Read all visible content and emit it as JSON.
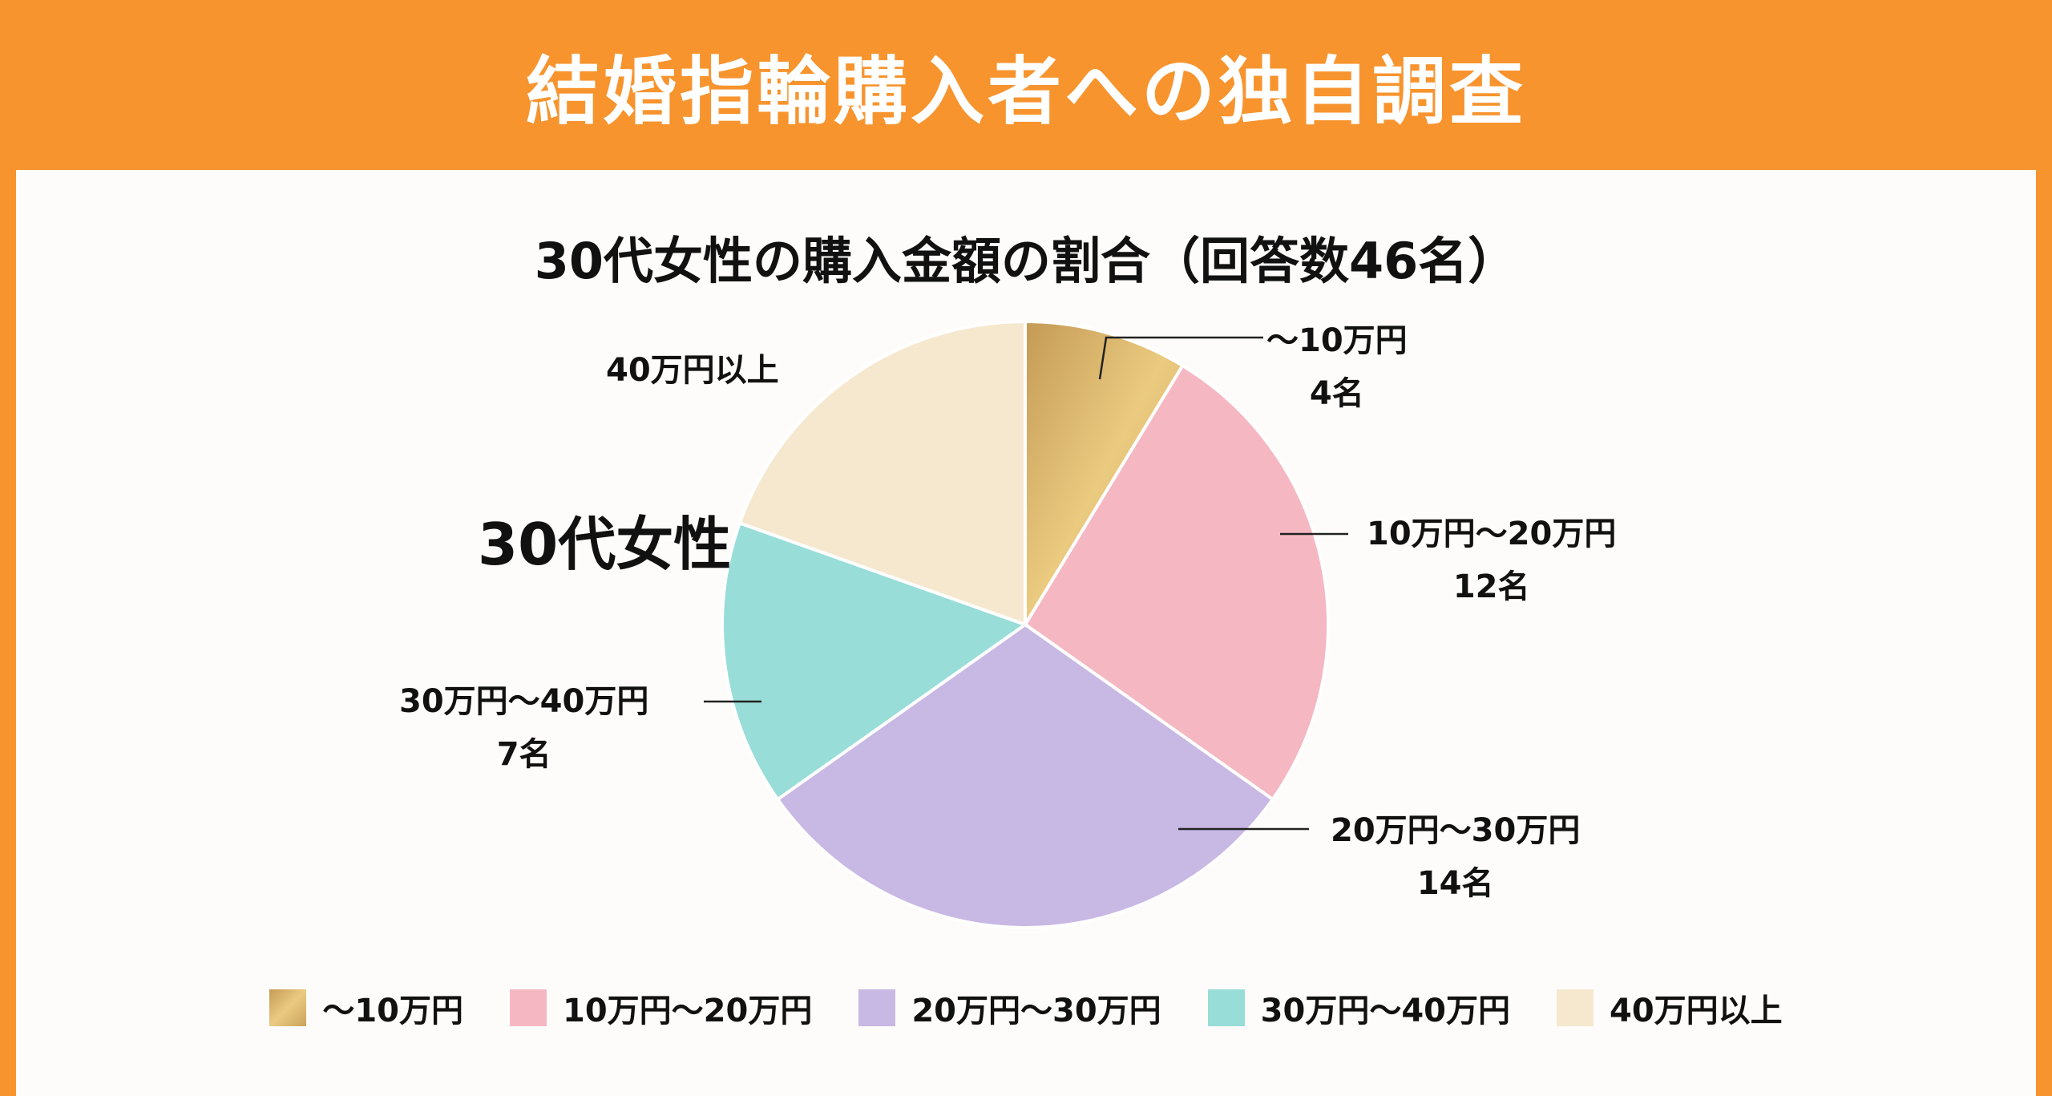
{
  "header": {
    "title": "結婚指輪購入者への独自調査"
  },
  "chart_data": {
    "type": "pie",
    "title": "30代女性の購入金額の割合（回答数46名）",
    "center_label": "30代女性",
    "categories": [
      "〜10万円",
      "10万円〜20万円",
      "20万円〜30万円",
      "30万円〜40万円",
      "40万円以上"
    ],
    "values": [
      4,
      12,
      14,
      7,
      9
    ],
    "value_labels": [
      "4名",
      "12名",
      "14名",
      "7名",
      ""
    ],
    "colors": [
      "#D9B56A",
      "#F5B8C2",
      "#C8B8E4",
      "#98DDD8",
      "#F5E8CE"
    ],
    "legend_position": "bottom"
  },
  "colors": {
    "header": "#F7942E",
    "background": "#FDFCFA"
  }
}
